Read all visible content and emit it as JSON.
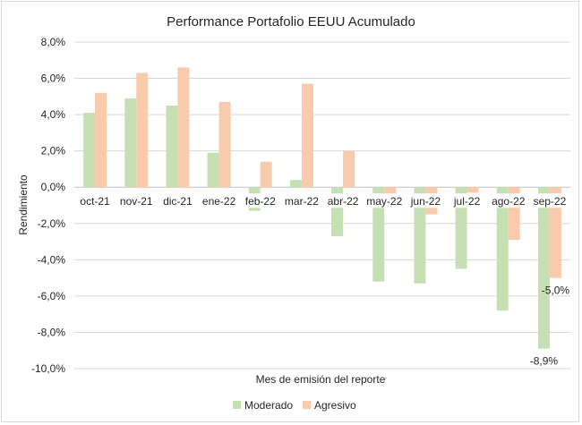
{
  "chart_data": {
    "type": "bar",
    "title": "Performance Portafolio EEUU Acumulado",
    "xlabel": "Mes de emisión del reporte",
    "ylabel": "Rendimiento",
    "ylim": [
      -10,
      8
    ],
    "yticks": [
      8,
      6,
      4,
      2,
      0,
      -2,
      -4,
      -6,
      -8,
      -10
    ],
    "ytick_labels": [
      "8,0%",
      "6,0%",
      "4,0%",
      "2,0%",
      "0,0%",
      "-2,0%",
      "-4,0%",
      "-6,0%",
      "-8,0%",
      "-10,0%"
    ],
    "grid": true,
    "legend": "bottom",
    "categories": [
      "oct-21",
      "nov-21",
      "dic-21",
      "ene-22",
      "feb-22",
      "mar-22",
      "abr-22",
      "may-22",
      "jun-22",
      "jul-22",
      "ago-22",
      "sep-22"
    ],
    "series": [
      {
        "name": "Moderado",
        "color": "#c6e0b4",
        "values": [
          4.1,
          4.9,
          4.5,
          1.9,
          -1.3,
          0.4,
          -2.7,
          -5.2,
          -5.3,
          -4.5,
          -6.8,
          -8.9
        ]
      },
      {
        "name": "Agresivo",
        "color": "#f8cbad",
        "values": [
          5.2,
          6.3,
          6.6,
          4.7,
          1.4,
          5.7,
          2.0,
          -0.6,
          -1.5,
          -0.3,
          -2.9,
          -5.0
        ]
      }
    ],
    "data_labels": [
      {
        "series": "Agresivo",
        "category": "sep-22",
        "text": "-5,0%"
      },
      {
        "series": "Moderado",
        "category": "sep-22",
        "text": "-8,9%"
      }
    ],
    "colors": {
      "grid": "#d9d9d9",
      "axis": "#bfbfbf",
      "text": "#262626"
    }
  }
}
